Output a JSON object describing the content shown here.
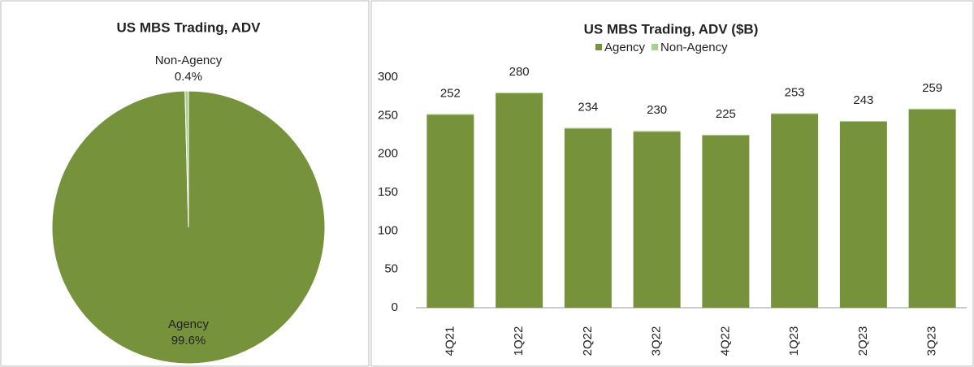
{
  "chart_data": [
    {
      "type": "pie",
      "title": "US MBS Trading, ADV",
      "categories": [
        "Agency",
        "Non-Agency"
      ],
      "values": [
        99.6,
        0.4
      ],
      "value_labels": [
        "99.6%",
        "0.4%"
      ],
      "colors": [
        "#76933c",
        "#a9d18e"
      ]
    },
    {
      "type": "bar",
      "title": "US MBS Trading, ADV ($B)",
      "stacked": true,
      "categories": [
        "4Q21",
        "1Q22",
        "2Q22",
        "3Q22",
        "4Q22",
        "1Q23",
        "2Q23",
        "3Q23"
      ],
      "series": [
        {
          "name": "Agency",
          "color": "#76933c",
          "values": [
            251,
            279,
            233,
            229,
            224,
            252,
            242,
            258
          ]
        },
        {
          "name": "Non-Agency",
          "color": "#a9d18e",
          "values": [
            1,
            1,
            1,
            1,
            1,
            1,
            1,
            1
          ]
        }
      ],
      "totals": [
        252,
        280,
        234,
        230,
        225,
        253,
        243,
        259
      ],
      "ylim": [
        0,
        300
      ],
      "yticks": [
        0,
        50,
        100,
        150,
        200,
        250,
        300
      ],
      "legend": "top"
    }
  ]
}
